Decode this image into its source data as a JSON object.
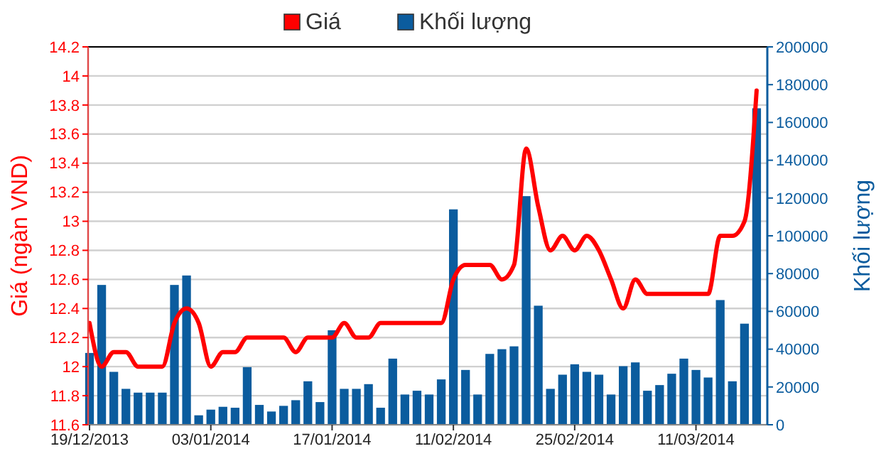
{
  "chart_data": {
    "type": "bar",
    "ylabel": "Giá (ngàn VND)",
    "y2label": "Khối lượng",
    "categories": [
      "19/12/2013",
      null,
      null,
      null,
      null,
      null,
      null,
      null,
      null,
      null,
      "03/01/2014",
      null,
      null,
      null,
      null,
      null,
      null,
      null,
      null,
      null,
      "17/01/2014",
      null,
      null,
      null,
      null,
      null,
      null,
      null,
      null,
      null,
      "11/02/2014",
      null,
      null,
      null,
      null,
      null,
      null,
      null,
      null,
      null,
      "25/02/2014",
      null,
      null,
      null,
      null,
      null,
      null,
      null,
      null,
      null,
      "11/03/2014",
      null,
      null,
      null,
      null,
      null
    ],
    "series": [
      {
        "name": "Giá",
        "type": "line",
        "color": "#ff0000",
        "values": [
          12.3,
          12.0,
          12.1,
          12.1,
          12.0,
          12.0,
          12.0,
          12.3,
          12.4,
          12.3,
          12.0,
          12.1,
          12.1,
          12.2,
          12.2,
          12.2,
          12.2,
          12.1,
          12.2,
          12.2,
          12.2,
          12.3,
          12.2,
          12.2,
          12.3,
          12.3,
          12.3,
          12.3,
          12.3,
          12.3,
          12.6,
          12.7,
          12.7,
          12.7,
          12.6,
          12.7,
          13.5,
          13.1,
          12.8,
          12.9,
          12.8,
          12.9,
          12.8,
          12.6,
          12.4,
          12.6,
          12.5,
          12.5,
          12.5,
          12.5,
          12.5,
          12.5,
          12.9,
          12.9,
          13.0,
          13.9
        ]
      },
      {
        "name": "Khối lượng",
        "axis": "y2",
        "color": "#0b5c9e",
        "values": [
          38000,
          74000,
          28000,
          19000,
          17000,
          17000,
          17000,
          74000,
          79000,
          5000,
          8000,
          9500,
          9000,
          30500,
          10500,
          7000,
          10000,
          13000,
          23000,
          12000,
          50000,
          19000,
          19000,
          21500,
          9000,
          35000,
          16000,
          18000,
          16000,
          24000,
          114000,
          29000,
          16000,
          37500,
          40000,
          41500,
          121000,
          63000,
          19000,
          26500,
          32000,
          28000,
          26500,
          16000,
          31000,
          33000,
          18000,
          21000,
          27000,
          35000,
          29000,
          25000,
          66000,
          23000,
          53500,
          167500
        ]
      }
    ],
    "ylim": [
      11.6,
      14.2
    ],
    "yticks": [
      11.6,
      11.8,
      12,
      12.2,
      12.4,
      12.6,
      12.8,
      13,
      13.2,
      13.4,
      13.6,
      13.8,
      14,
      14.2
    ],
    "y2lim": [
      0,
      200000
    ],
    "y2ticks": [
      0,
      20000,
      40000,
      60000,
      80000,
      100000,
      120000,
      140000,
      160000,
      180000,
      200000
    ],
    "grid": "y",
    "legend": "top left"
  }
}
